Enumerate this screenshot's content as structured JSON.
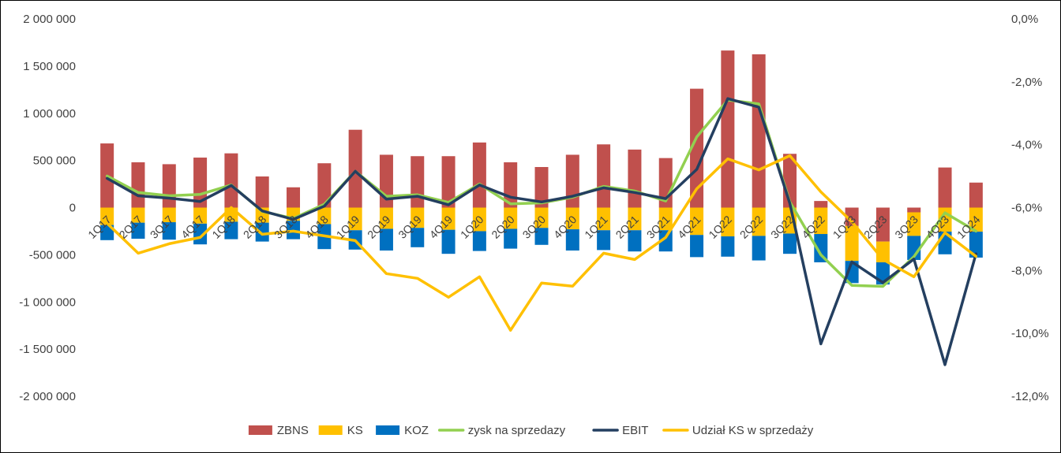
{
  "chart_data": {
    "type": "bar",
    "stacked": true,
    "title": "",
    "xlabel": "",
    "ylabel": "",
    "ylim": [
      -2000000,
      2000000
    ],
    "y2lim": [
      -12.0,
      0.0
    ],
    "y_ticks": [
      "2 000 000",
      "1 500 000",
      "1 000 000",
      "500 000",
      "0",
      "-500 000",
      "-1 000 000",
      "-1 500 000",
      "-2 000 000"
    ],
    "y_tick_values": [
      2000000,
      1500000,
      1000000,
      500000,
      0,
      -500000,
      -1000000,
      -1500000,
      -2000000
    ],
    "y2_ticks": [
      "0,0%",
      "-2,0%",
      "-4,0%",
      "-6,0%",
      "-8,0%",
      "-10,0%",
      "-12,0%"
    ],
    "y2_tick_values": [
      0,
      -2,
      -4,
      -6,
      -8,
      -10,
      -12
    ],
    "grid": false,
    "legend_position": "bottom",
    "categories": [
      "1Q17",
      "2Q17",
      "3Q17",
      "4Q17",
      "1Q18",
      "2Q18",
      "3Q18",
      "4Q18",
      "1Q19",
      "2Q19",
      "3Q19",
      "4Q19",
      "1Q20",
      "2Q20",
      "3Q20",
      "4Q20",
      "1Q21",
      "2Q21",
      "3Q21",
      "4Q21",
      "1Q22",
      "2Q22",
      "3Q22",
      "4Q22",
      "1Q23",
      "2Q23",
      "3Q23",
      "4Q23",
      "1Q24"
    ],
    "series": [
      {
        "name": "ZBNS",
        "kind": "bar",
        "color": "#C0504D",
        "values": [
          680000,
          480000,
          460000,
          530000,
          575000,
          330000,
          215000,
          470000,
          825000,
          560000,
          545000,
          545000,
          690000,
          480000,
          430000,
          560000,
          670000,
          615000,
          525000,
          1260000,
          1665000,
          1625000,
          570000,
          70000,
          -195000,
          -360000,
          -50000,
          425000,
          265000
        ]
      },
      {
        "name": "KS",
        "kind": "bar",
        "color": "#FFC000",
        "values": [
          -185000,
          -160000,
          -155000,
          -170000,
          -150000,
          -160000,
          -140000,
          -175000,
          -240000,
          -225000,
          -215000,
          -235000,
          -250000,
          -225000,
          -215000,
          -230000,
          -240000,
          -240000,
          -240000,
          -290000,
          -305000,
          -300000,
          -275000,
          -280000,
          -370000,
          -220000,
          -250000,
          -255000,
          -255000
        ]
      },
      {
        "name": "KOZ",
        "kind": "bar",
        "color": "#0070C0",
        "values": [
          -160000,
          -170000,
          -185000,
          -220000,
          -185000,
          -200000,
          -195000,
          -265000,
          -205000,
          -230000,
          -205000,
          -255000,
          -210000,
          -210000,
          -180000,
          -225000,
          -210000,
          -225000,
          -225000,
          -235000,
          -215000,
          -260000,
          -215000,
          -300000,
          -235000,
          -235000,
          -255000,
          -240000,
          -275000
        ]
      },
      {
        "name": "zysk na sprzedazy",
        "kind": "line",
        "axis": "left",
        "color": "#92D050",
        "values": [
          335000,
          160000,
          125000,
          140000,
          240000,
          -40000,
          -115000,
          35000,
          385000,
          120000,
          135000,
          55000,
          250000,
          40000,
          50000,
          110000,
          225000,
          175000,
          70000,
          750000,
          1140000,
          1100000,
          60000,
          -500000,
          -825000,
          -835000,
          -520000,
          -55000,
          -250000
        ]
      },
      {
        "name": "EBIT",
        "kind": "line",
        "axis": "left",
        "color": "#243F60",
        "values": [
          310000,
          125000,
          100000,
          65000,
          235000,
          -35000,
          -125000,
          15000,
          385000,
          90000,
          120000,
          30000,
          240000,
          110000,
          60000,
          120000,
          210000,
          160000,
          95000,
          405000,
          1155000,
          1065000,
          45000,
          -1445000,
          -575000,
          -795000,
          -545000,
          -1665000,
          -490000
        ]
      },
      {
        "name": "Udział KS w sprzedaży",
        "kind": "line",
        "axis": "right",
        "color": "#FFC000",
        "values": [
          -6.5,
          -7.45,
          -7.15,
          -6.95,
          -6.0,
          -6.85,
          -6.75,
          -6.9,
          -7.05,
          -8.1,
          -8.25,
          -8.85,
          -8.2,
          -9.9,
          -8.4,
          -8.5,
          -7.45,
          -7.65,
          -6.95,
          -5.4,
          -4.45,
          -4.8,
          -4.35,
          -5.5,
          -6.45,
          -7.65,
          -8.2,
          -6.8,
          -7.55
        ]
      }
    ]
  }
}
